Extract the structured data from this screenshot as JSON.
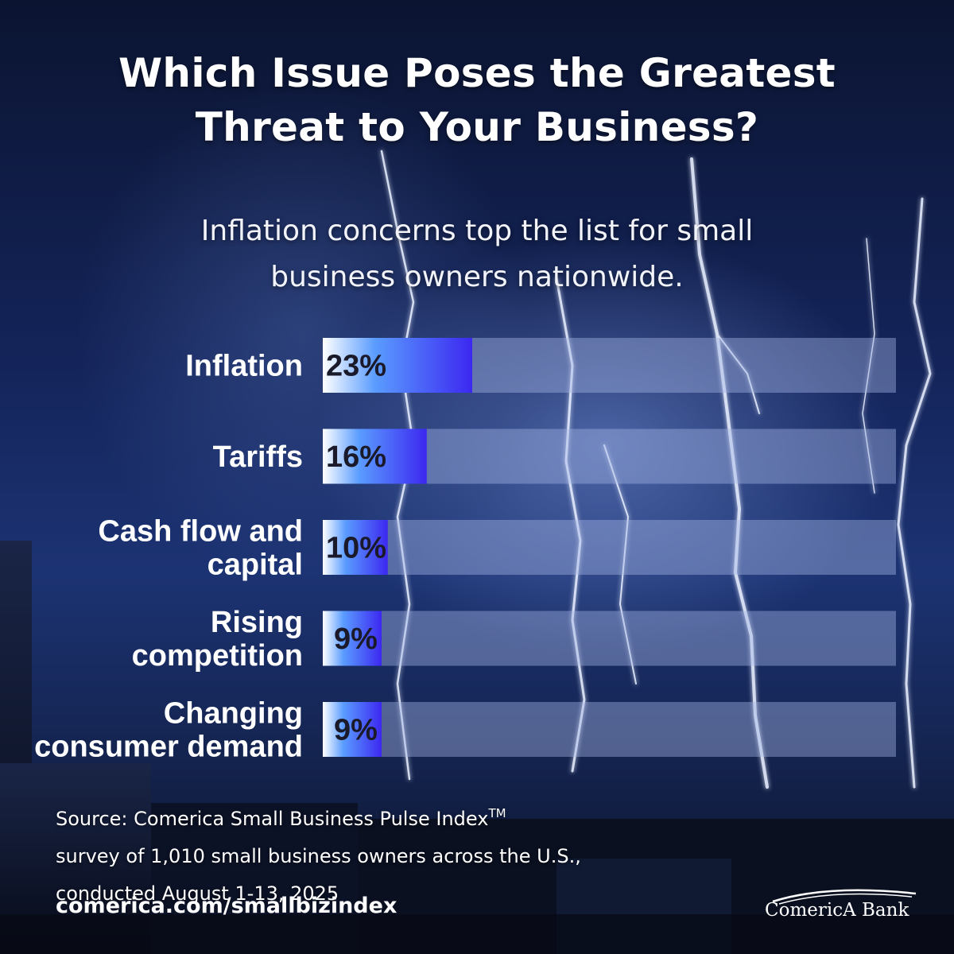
{
  "title_line1": "Which Issue Poses the Greatest",
  "title_line2": "Threat to Your Business?",
  "subtitle_line1": "Inflation concerns top the list for small",
  "subtitle_line2": "business owners nationwide.",
  "chart_data": {
    "type": "bar",
    "orientation": "horizontal",
    "categories": [
      [
        "Inflation"
      ],
      [
        "Tariffs"
      ],
      [
        "Cash flow and",
        "capital"
      ],
      [
        "Rising",
        "competition"
      ],
      [
        "Changing",
        "consumer demand"
      ]
    ],
    "values": [
      23,
      16,
      10,
      9,
      9
    ],
    "value_labels": [
      "23%",
      "16%",
      "10%",
      "9%",
      "9%"
    ],
    "xlim": [
      0,
      100
    ],
    "grid": false,
    "legend": "none"
  },
  "colors": {
    "bar_start": "#ffffff",
    "bar_mid": "#5a9cff",
    "bar_end": "#3c28f0",
    "track": "#a8b8e6"
  },
  "source": {
    "line1": "Source: Comerica Small Business Pulse Index",
    "line1_sup": "TM",
    "line2": "survey of 1,010 small business owners across the U.S.,",
    "line3": "conducted August 1-13, 2025"
  },
  "url": "comerica.com/smallbizindex",
  "logo": {
    "name": "comerica-bank-logo",
    "text": "ComericA Bank"
  }
}
